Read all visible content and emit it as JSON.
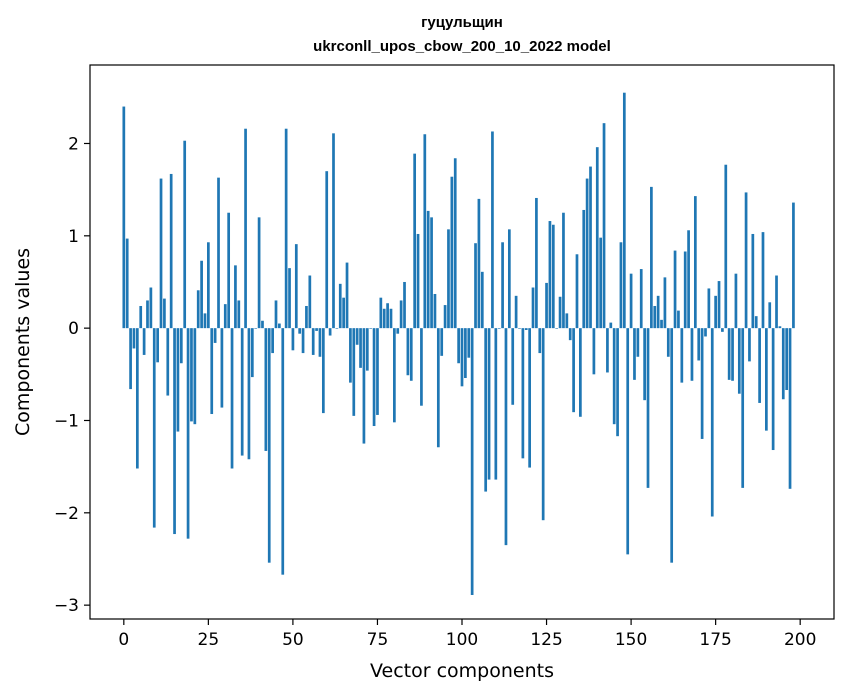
{
  "chart_data": {
    "type": "bar",
    "title_line1": "гуцульщин",
    "title_line2": "ukrconll_upos_cbow_200_10_2022 model",
    "xlabel": "Vector components",
    "ylabel": "Components values",
    "xlim": [
      -10,
      210
    ],
    "ylim": [
      -3.15,
      2.85
    ],
    "x_ticks": [
      0,
      25,
      50,
      75,
      100,
      125,
      150,
      175,
      200
    ],
    "y_ticks": [
      -3,
      -2,
      -1,
      0,
      1,
      2
    ],
    "bar_color": "#1f77b4",
    "grid": false,
    "values": [
      2.4,
      0.97,
      -0.66,
      -0.22,
      -1.52,
      0.24,
      -0.29,
      0.3,
      0.44,
      -2.16,
      -0.37,
      1.62,
      0.32,
      -0.73,
      1.67,
      -2.23,
      -1.12,
      -0.38,
      2.03,
      -2.28,
      -1.01,
      -1.04,
      0.41,
      0.73,
      0.16,
      0.93,
      -0.93,
      -0.16,
      1.63,
      -0.86,
      0.26,
      1.25,
      -1.52,
      0.68,
      0.3,
      -1.38,
      2.16,
      -1.42,
      -0.53,
      0.0,
      1.2,
      0.08,
      -1.33,
      -2.54,
      -0.27,
      0.3,
      0.05,
      -2.67,
      2.16,
      0.65,
      -0.24,
      0.91,
      -0.06,
      -0.27,
      0.24,
      0.57,
      -0.29,
      -0.03,
      -0.31,
      -0.92,
      1.7,
      -0.08,
      2.11,
      0.0,
      0.48,
      0.33,
      0.71,
      -0.59,
      -0.95,
      -0.18,
      -0.43,
      -1.25,
      -0.46,
      0.0,
      -1.06,
      -0.94,
      0.33,
      0.21,
      0.27,
      0.21,
      -1.02,
      -0.06,
      0.3,
      0.5,
      -0.51,
      -0.57,
      1.89,
      1.02,
      -0.84,
      2.1,
      1.27,
      1.2,
      0.37,
      -1.29,
      -0.3,
      0.25,
      1.07,
      1.64,
      1.84,
      -0.38,
      -0.63,
      -0.54,
      -0.32,
      -2.89,
      0.92,
      1.4,
      0.61,
      -1.77,
      -1.64,
      2.13,
      -1.64,
      0.0,
      0.93,
      -2.35,
      1.07,
      -0.83,
      0.35,
      0.0,
      -1.41,
      -0.02,
      -1.51,
      0.44,
      1.41,
      -0.27,
      -2.08,
      0.49,
      1.16,
      1.12,
      0.0,
      0.34,
      1.25,
      0.16,
      -0.13,
      -0.91,
      0.8,
      -0.96,
      1.28,
      1.62,
      1.75,
      -0.5,
      1.96,
      0.98,
      2.22,
      -0.48,
      0.06,
      -1.04,
      -1.17,
      0.93,
      2.55,
      -2.45,
      0.59,
      -0.56,
      -0.31,
      0.64,
      -0.78,
      -1.73,
      1.53,
      0.24,
      0.35,
      0.09,
      0.55,
      -0.31,
      -2.54,
      0.84,
      0.19,
      -0.59,
      0.83,
      1.06,
      -0.57,
      1.43,
      -0.35,
      -1.2,
      -0.09,
      0.43,
      -2.04,
      0.35,
      0.51,
      -0.04,
      1.77,
      -0.56,
      -0.57,
      0.59,
      -0.71,
      -1.73,
      1.47,
      -0.36,
      1.02,
      0.13,
      -0.81,
      1.04,
      -1.11,
      0.28,
      -1.32,
      0.57,
      0.02,
      -0.77,
      -0.67,
      -1.74,
      1.36
    ]
  }
}
